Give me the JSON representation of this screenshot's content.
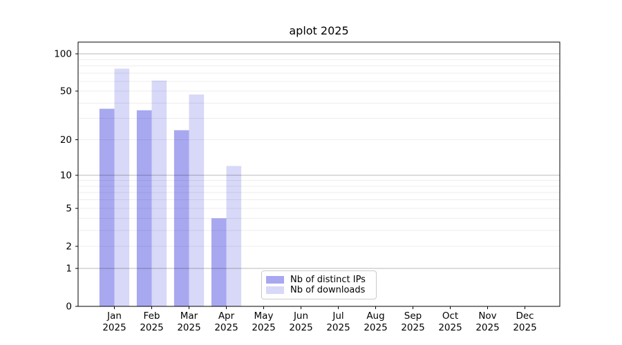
{
  "figure": {
    "title": "aplot 2025"
  },
  "chart_data": {
    "type": "bar",
    "title": "aplot 2025",
    "categories": [
      "Jan",
      "Feb",
      "Mar",
      "Apr",
      "May",
      "Jun",
      "Jul",
      "Aug",
      "Sep",
      "Oct",
      "Nov",
      "Dec"
    ],
    "x_year_label": "2025",
    "series": [
      {
        "name": "Nb of distinct IPs",
        "color": "#a8a8f0",
        "values": [
          36,
          35,
          24,
          4,
          0,
          0,
          0,
          0,
          0,
          0,
          0,
          0
        ]
      },
      {
        "name": "Nb of downloads",
        "color": "#d8d8f8",
        "values": [
          76,
          61,
          47,
          12,
          0,
          0,
          0,
          0,
          0,
          0,
          0,
          0
        ]
      }
    ],
    "xlabel": "",
    "ylabel": "",
    "yscale": "log10(1+v)",
    "ylim": [
      0,
      128
    ],
    "yticks": [
      0,
      1,
      2,
      5,
      10,
      20,
      50,
      100
    ],
    "gridlines": {
      "major": [
        1,
        10,
        100
      ],
      "minor": [
        2,
        3,
        4,
        5,
        6,
        7,
        8,
        9,
        20,
        30,
        40,
        50,
        60,
        70,
        80,
        90
      ]
    },
    "grid": true,
    "legend": {
      "position": "inside lower-center",
      "entries": [
        "Nb of distinct IPs",
        "Nb of downloads"
      ]
    }
  }
}
